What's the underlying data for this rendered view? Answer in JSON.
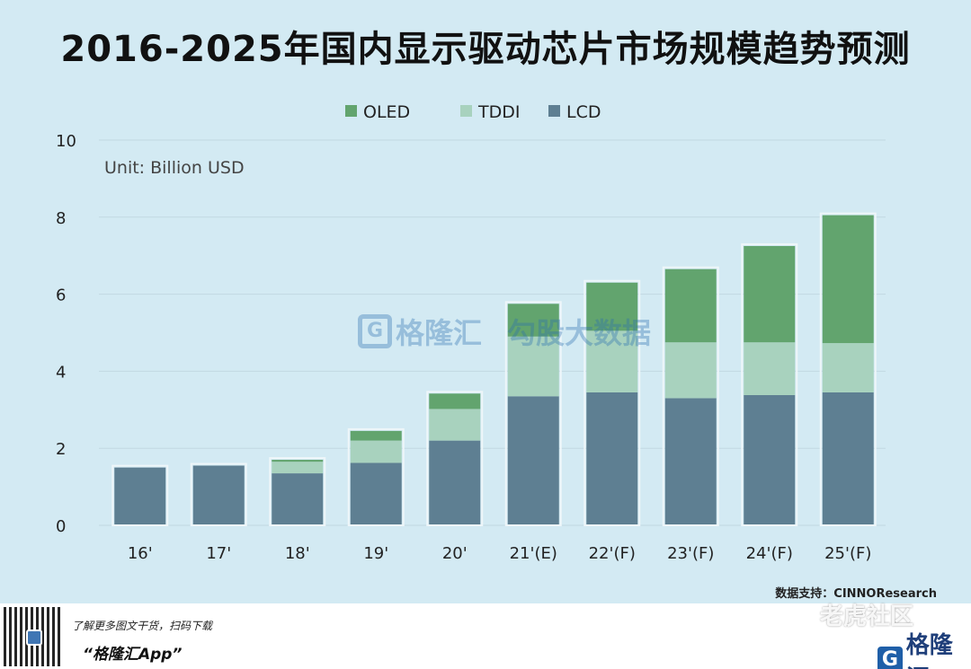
{
  "title": "2016-2025年国内显示驱动芯片市场规模趋势预测",
  "unit_label": "Unit: Billion USD",
  "source": "数据支持：CINNOResearch",
  "watermark": {
    "brand": "格隆汇",
    "brand2": "勾股大数据"
  },
  "footer": {
    "tagline": "了解更多图文干货，扫码下载",
    "app_name": "“格隆汇App”",
    "logo_text": "格隆汇",
    "community": "老虎社区"
  },
  "colors": {
    "LCD": "#5e7f92",
    "TDDI": "#a8d2be",
    "OLED": "#62a46e"
  },
  "chart_data": {
    "type": "bar",
    "stacked": true,
    "title": "2016-2025年国内显示驱动芯片市场规模趋势预测",
    "unit": "Unit: Billion USD",
    "categories": [
      "16'",
      "17'",
      "18'",
      "19'",
      "20'",
      "21'(E)",
      "22'(F)",
      "23'(F)",
      "24'(F)",
      "25'(F)"
    ],
    "series": [
      {
        "name": "LCD",
        "values": [
          1.5,
          1.55,
          1.35,
          1.62,
          2.2,
          3.35,
          3.45,
          3.3,
          3.38,
          3.45
        ]
      },
      {
        "name": "TDDI",
        "values": [
          0,
          0,
          0.3,
          0.58,
          0.82,
          1.55,
          1.6,
          1.45,
          1.37,
          1.28
        ]
      },
      {
        "name": "OLED",
        "values": [
          0,
          0,
          0.05,
          0.25,
          0.4,
          0.85,
          1.25,
          1.9,
          2.5,
          3.32
        ]
      }
    ],
    "legend": [
      "OLED",
      "TDDI",
      "LCD"
    ],
    "legend_position": "top",
    "ylim": [
      0,
      10
    ],
    "yticks": [
      0,
      2,
      4,
      6,
      8,
      10
    ],
    "grid": true
  }
}
